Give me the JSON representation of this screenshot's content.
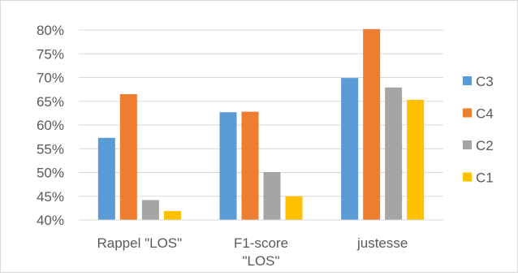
{
  "chart_data": {
    "type": "bar",
    "title": "",
    "xlabel": "",
    "ylabel": "",
    "categories": [
      [
        "Rappel \"LOS\""
      ],
      [
        "F1-score",
        "\"LOS\""
      ],
      [
        "justesse"
      ]
    ],
    "series": [
      {
        "name": "C3",
        "color": "#5b9bd5",
        "values": [
          57.3,
          62.7,
          69.9
        ]
      },
      {
        "name": "C4",
        "color": "#ed7d31",
        "values": [
          66.5,
          62.8,
          80.2
        ]
      },
      {
        "name": "C2",
        "color": "#a5a5a5",
        "values": [
          44.2,
          50.1,
          67.9
        ]
      },
      {
        "name": "C1",
        "color": "#ffc000",
        "values": [
          41.9,
          45.0,
          65.3
        ]
      }
    ],
    "ylim": [
      40,
      80
    ],
    "yticks": [
      "40%",
      "45%",
      "50%",
      "55%",
      "60%",
      "65%",
      "70%",
      "75%",
      "80%"
    ],
    "ytick_values": [
      40,
      45,
      50,
      55,
      60,
      65,
      70,
      75,
      80
    ],
    "grid": true,
    "legend": {
      "position": "right",
      "order": [
        "C3",
        "C4",
        "C2",
        "C1"
      ]
    }
  }
}
